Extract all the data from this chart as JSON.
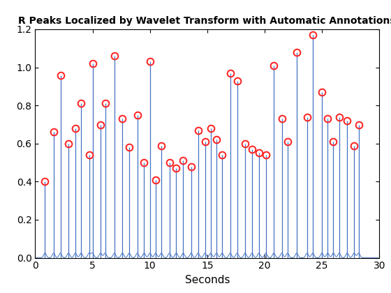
{
  "title": "R Peaks Localized by Wavelet Transform with Automatic Annotations",
  "xlabel": "Seconds",
  "xlim": [
    0,
    30
  ],
  "ylim": [
    0,
    1.2
  ],
  "yticks": [
    0,
    0.2,
    0.4,
    0.6,
    0.8,
    1.0,
    1.2
  ],
  "xticks": [
    0,
    5,
    10,
    15,
    20,
    25,
    30
  ],
  "line_color": "#4472c4",
  "marker_color": "#ff2020",
  "peaks": [
    [
      0.85,
      0.4
    ],
    [
      1.6,
      0.66
    ],
    [
      2.2,
      0.96
    ],
    [
      2.9,
      0.6
    ],
    [
      3.5,
      0.68
    ],
    [
      4.0,
      0.81
    ],
    [
      4.7,
      0.54
    ],
    [
      5.0,
      1.02
    ],
    [
      5.7,
      0.7
    ],
    [
      6.1,
      0.81
    ],
    [
      6.9,
      1.06
    ],
    [
      7.6,
      0.73
    ],
    [
      8.2,
      0.58
    ],
    [
      8.9,
      0.75
    ],
    [
      9.5,
      0.5
    ],
    [
      10.0,
      1.03
    ],
    [
      10.5,
      0.41
    ],
    [
      11.0,
      0.59
    ],
    [
      11.7,
      0.5
    ],
    [
      12.3,
      0.47
    ],
    [
      12.9,
      0.51
    ],
    [
      13.6,
      0.48
    ],
    [
      14.2,
      0.67
    ],
    [
      14.8,
      0.61
    ],
    [
      15.3,
      0.68
    ],
    [
      15.8,
      0.62
    ],
    [
      16.3,
      0.54
    ],
    [
      17.0,
      0.97
    ],
    [
      17.6,
      0.93
    ],
    [
      18.3,
      0.6
    ],
    [
      18.9,
      0.57
    ],
    [
      19.5,
      0.55
    ],
    [
      20.1,
      0.54
    ],
    [
      20.8,
      1.01
    ],
    [
      21.5,
      0.73
    ],
    [
      22.0,
      0.61
    ],
    [
      22.8,
      1.08
    ],
    [
      23.7,
      0.74
    ],
    [
      24.2,
      1.17
    ],
    [
      25.0,
      0.87
    ],
    [
      25.5,
      0.73
    ],
    [
      26.0,
      0.61
    ],
    [
      26.5,
      0.74
    ],
    [
      27.2,
      0.72
    ],
    [
      27.8,
      0.59
    ],
    [
      28.2,
      0.7
    ]
  ],
  "figsize": [
    5.6,
    4.2
  ],
  "dpi": 100
}
